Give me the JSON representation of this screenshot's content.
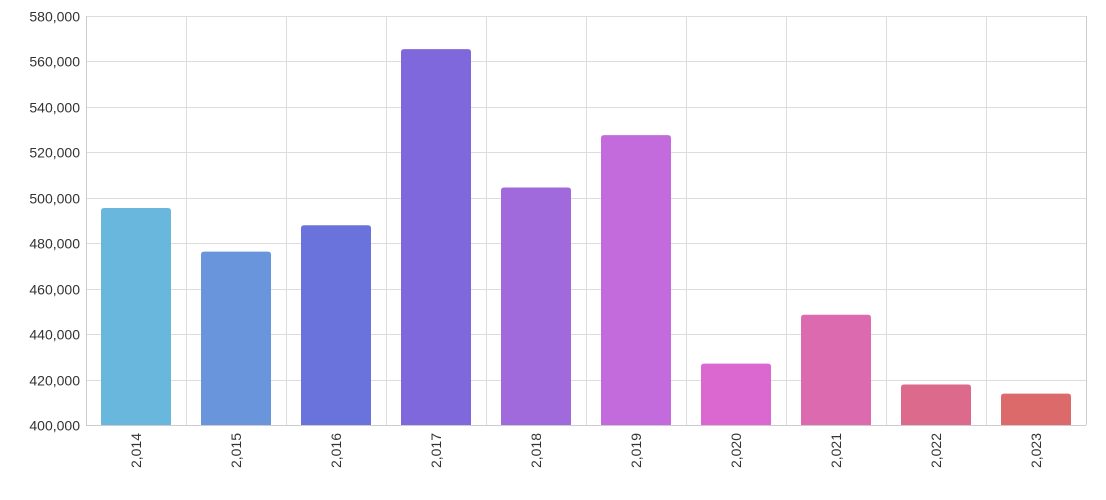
{
  "chart_data": {
    "type": "bar",
    "title": "",
    "xlabel": "",
    "ylabel": "",
    "categories": [
      "2,014",
      "2,015",
      "2,016",
      "2,017",
      "2,018",
      "2,019",
      "2,020",
      "2,021",
      "2,022",
      "2,023"
    ],
    "values": [
      495500,
      476300,
      487900,
      565400,
      504500,
      527600,
      427000,
      448500,
      417800,
      413800
    ],
    "ylim": [
      400000,
      580000
    ],
    "yticks": [
      400000,
      420000,
      440000,
      460000,
      480000,
      500000,
      520000,
      540000,
      560000,
      580000
    ],
    "ytick_labels": [
      "400,000",
      "420,000",
      "440,000",
      "460,000",
      "480,000",
      "500,000",
      "520,000",
      "540,000",
      "560,000",
      "580,000"
    ],
    "grid": true,
    "legend": "none",
    "colors": [
      "#69b7dc",
      "#6895dc",
      "#6a73dc",
      "#7f68dc",
      "#a16adc",
      "#c36bdc",
      "#da68d0",
      "#dc6aae",
      "#dc6a8c",
      "#dc6a6a"
    ]
  }
}
